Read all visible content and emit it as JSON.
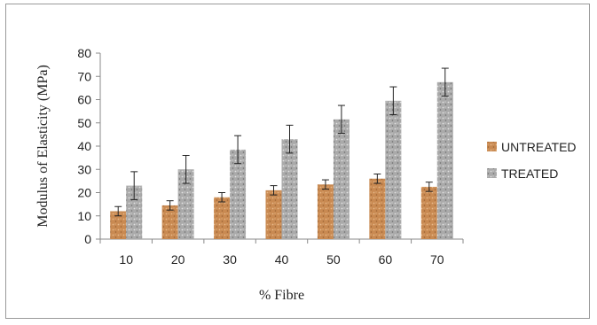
{
  "chart_data": {
    "type": "bar",
    "categories": [
      "10",
      "20",
      "30",
      "40",
      "50",
      "60",
      "70"
    ],
    "series": [
      {
        "name": "UNTREATED",
        "color": "#c98a52",
        "values": [
          12,
          14.5,
          18,
          21,
          23.5,
          26,
          22.5
        ],
        "errors": [
          2,
          2,
          2,
          2,
          2,
          2,
          2
        ]
      },
      {
        "name": "TREATED",
        "color": "#a8a8a8",
        "values": [
          23,
          30,
          38.5,
          43,
          51.5,
          59.5,
          67.5
        ],
        "errors": [
          6,
          6,
          6,
          6,
          6,
          6,
          6
        ]
      }
    ],
    "xlabel": "% Fibre",
    "ylabel": "Modulus of Elasticity  (MPa)",
    "ylim": [
      0,
      80
    ],
    "yticks": [
      "0",
      "10",
      "20",
      "30",
      "40",
      "50",
      "60",
      "70",
      "80"
    ],
    "grid": false,
    "legend_position": "right"
  }
}
